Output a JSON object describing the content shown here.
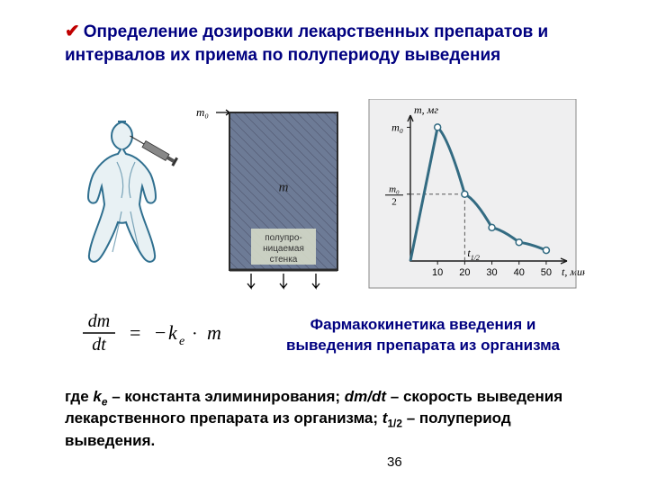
{
  "page": {
    "number": "36"
  },
  "heading": {
    "check": "✔",
    "text": "Определение дозировки лекарственных препаратов и интервалов их приема  по  полупериоду выведения"
  },
  "caption": "Фармакокинетика введения и выведения препарата из организма",
  "equation": {
    "lhs_num": "dm",
    "lhs_den": "dt",
    "eq": " = ",
    "rhs_minus": "−",
    "rhs_k": "k",
    "rhs_e": "e",
    "rhs_dot": " · ",
    "rhs_m": "m"
  },
  "footnote": {
    "p1": "где ",
    "ke_k": "k",
    "ke_e": "e",
    "p2": " – константа элиминирования; ",
    "dmdt": "dm/dt",
    "p3": " – скорость выведения лекарственного препарата из организма; ",
    "t": "t",
    "half": "1/2",
    "p4": " – полупериод выведения."
  },
  "illus": {
    "left": {
      "human_stroke": "#2f6f8f",
      "human_fill": "#e8f1f4",
      "syringe_fill": "#888888"
    },
    "mid": {
      "box_fill": "#6d7b96",
      "hatch_stroke": "#3a3f55",
      "border_stroke": "#2a2a2a",
      "m0": "m₀",
      "m": "m",
      "label": "полупро-\nницаемая\nстенка",
      "label_bg": "#d4d9c8"
    },
    "chart": {
      "type": "line",
      "bg": "#efeff0",
      "axis_stroke": "#1a1a1a",
      "curve_stroke": "#336b82",
      "curve_width": 3,
      "marker_fill": "#ffffff",
      "marker_stroke": "#336b82",
      "dash_stroke": "#555555",
      "xlabel": "t, мин",
      "ylabel": "m, мг",
      "y_m0": "m₀",
      "y_m0_2": "m₀\n2",
      "t_half": "t",
      "t_half_sub": "1/2",
      "xlim": [
        0,
        55
      ],
      "ylim": [
        0,
        1.05
      ],
      "xticks": [
        10,
        20,
        30,
        40,
        50
      ],
      "xtick_labels": [
        "10",
        "20",
        "30",
        "40",
        "50"
      ],
      "points": [
        {
          "t": 0,
          "m": 0
        },
        {
          "t": 10,
          "m": 1.0
        },
        {
          "t": 20,
          "m": 0.5
        },
        {
          "t": 30,
          "m": 0.25
        },
        {
          "t": 40,
          "m": 0.14
        },
        {
          "t": 50,
          "m": 0.08
        }
      ],
      "markers_at": [
        10,
        20,
        30,
        40,
        50
      ]
    }
  }
}
